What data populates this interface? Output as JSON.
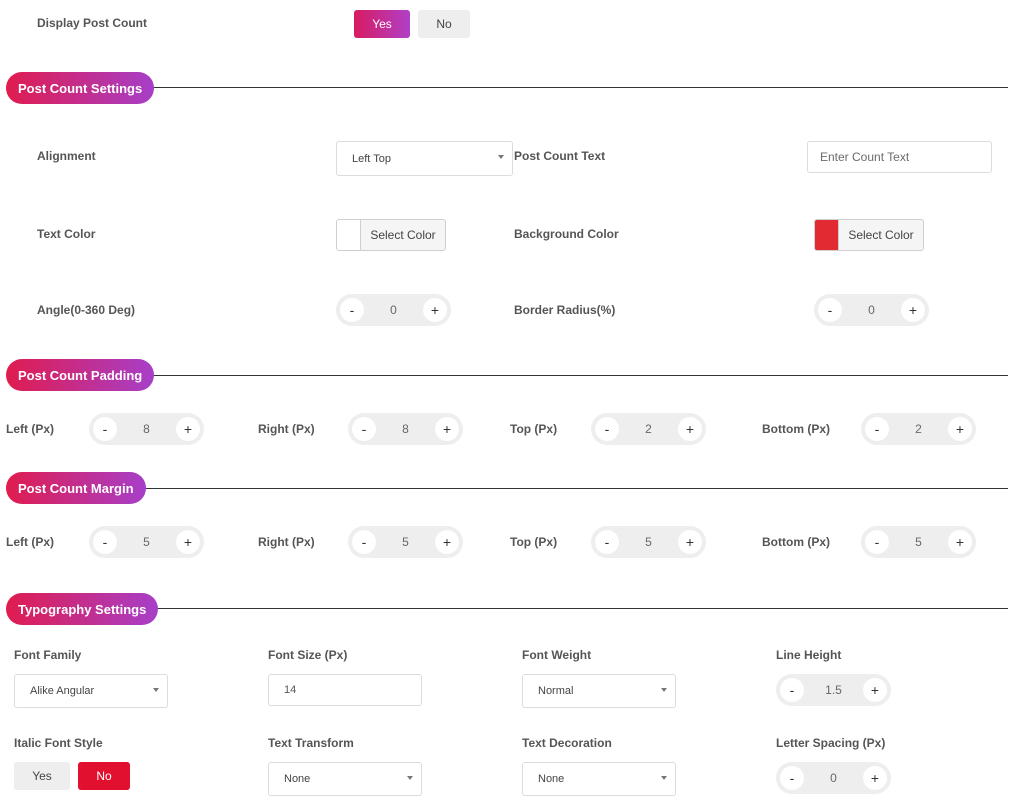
{
  "display_post_count": {
    "label": "Display Post Count",
    "yes": "Yes",
    "no": "No"
  },
  "settings": {
    "title": "Post Count Settings",
    "alignment": {
      "label": "Alignment",
      "value": "Left Top"
    },
    "post_count_text": {
      "label": "Post Count Text",
      "placeholder": "Enter Count Text"
    },
    "text_color": {
      "label": "Text Color",
      "button": "Select Color",
      "swatch": "#ffffff"
    },
    "background_color": {
      "label": "Background Color",
      "button": "Select Color",
      "swatch": "#e12a31"
    },
    "angle": {
      "label": "Angle(0-360 Deg)",
      "value": "0"
    },
    "border_radius": {
      "label": "Border Radius(%)",
      "value": "0"
    }
  },
  "padding": {
    "title": "Post Count Padding",
    "left": {
      "label": "Left (Px)",
      "value": "8"
    },
    "right": {
      "label": "Right (Px)",
      "value": "8"
    },
    "top": {
      "label": "Top (Px)",
      "value": "2"
    },
    "bottom": {
      "label": "Bottom (Px)",
      "value": "2"
    }
  },
  "margin": {
    "title": "Post Count Margin",
    "left": {
      "label": "Left (Px)",
      "value": "5"
    },
    "right": {
      "label": "Right (Px)",
      "value": "5"
    },
    "top": {
      "label": "Top (Px)",
      "value": "5"
    },
    "bottom": {
      "label": "Bottom (Px)",
      "value": "5"
    }
  },
  "typography": {
    "title": "Typography Settings",
    "font_family": {
      "label": "Font Family",
      "value": "Alike Angular"
    },
    "font_size": {
      "label": "Font Size (Px)",
      "value": "14"
    },
    "font_weight": {
      "label": "Font Weight",
      "value": "Normal"
    },
    "line_height": {
      "label": "Line Height",
      "value": "1.5"
    },
    "italic": {
      "label": "Italic Font Style",
      "yes": "Yes",
      "no": "No"
    },
    "text_transform": {
      "label": "Text Transform",
      "value": "None"
    },
    "text_decoration": {
      "label": "Text Decoration",
      "value": "None"
    },
    "letter_spacing": {
      "label": "Letter Spacing (Px)",
      "value": "0"
    }
  },
  "stepper": {
    "minus": "-",
    "plus": "+"
  },
  "colors": {
    "accent_start": "#e01c4f",
    "accent_end": "#a73fc9",
    "danger": "#e0102e"
  }
}
